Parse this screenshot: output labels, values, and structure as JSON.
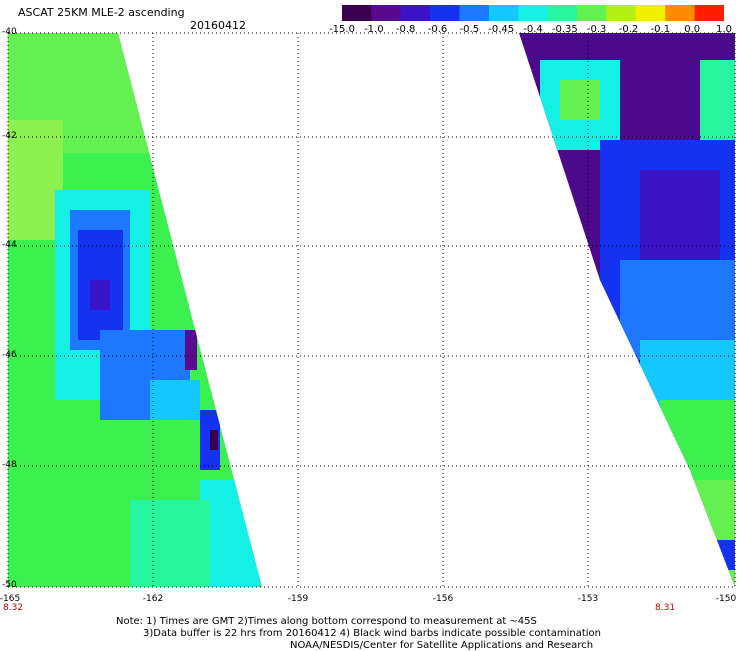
{
  "header": {
    "title": "ASCAT 25KM MLE-2 ascending",
    "date": "20160412"
  },
  "colorbar": {
    "labels": [
      "-15.0",
      "-1.0",
      "-0.8",
      "-0.6",
      "-0.5",
      "-0.45",
      "-0.4",
      "-0.35",
      "-0.3",
      "-0.2",
      "-0.1",
      "0.0",
      "1.0"
    ],
    "colors": [
      "#3a0050",
      "#5a0a8c",
      "#3c14c8",
      "#1432f0",
      "#1e78ff",
      "#14c8ff",
      "#14f0e6",
      "#28f5a0",
      "#64f050",
      "#b4f014",
      "#f0f000",
      "#ff8c00",
      "#ff1e00"
    ]
  },
  "axes": {
    "y_labels": [
      "-40",
      "-42",
      "-44",
      "-46",
      "-48",
      "-50"
    ],
    "x_labels": [
      "-165",
      "-162",
      "-159",
      "-156",
      "-153",
      "-150"
    ],
    "x_range": [
      -165,
      -150
    ],
    "y_range": [
      -40,
      -50
    ],
    "left_time_label": "8.32",
    "right_time_label": "8.31"
  },
  "swaths": {
    "left": {
      "shape": "triangle-west",
      "dominant_color": "#3cf050"
    },
    "right": {
      "shape": "triangle-east",
      "dominant_color": "#4b0a8c"
    }
  },
  "notes": {
    "line1": "Note: 1) Times are GMT 2)Times along bottom correspond to measurement at ~45S",
    "line2": "3)Data buffer is 22 hrs from 20160412 4) Black wind barbs indicate possible contamination",
    "line3": "NOAA/NESDIS/Center for Satellite Applications and Research"
  }
}
